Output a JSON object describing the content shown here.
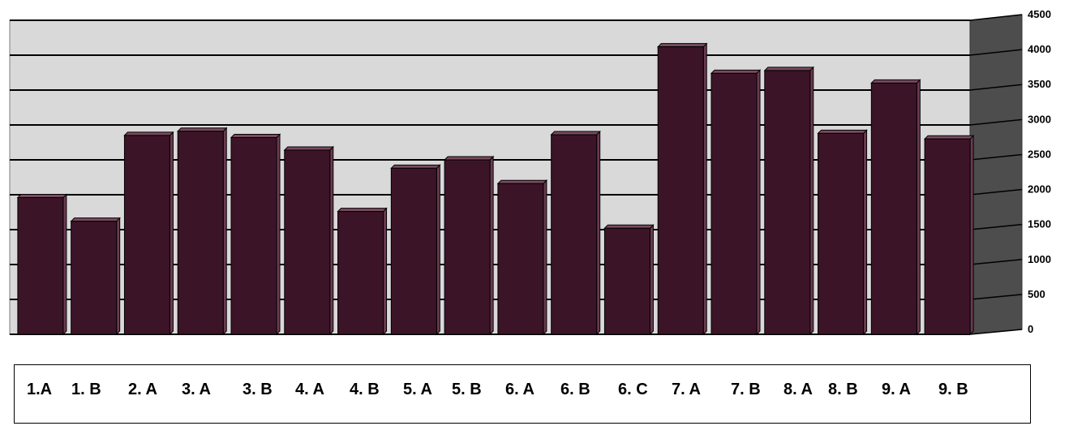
{
  "chart_data": {
    "type": "bar",
    "categories": [
      "1.A",
      "1. B",
      "2. A",
      "3. A",
      "3. B",
      "4. A",
      "4. B",
      "5. A",
      "5. B",
      "6. A",
      "6. B",
      "6. C",
      "7. A",
      "7. B",
      "8. A",
      "8. B",
      "9. A",
      "9. B"
    ],
    "values": [
      1960,
      1620,
      2850,
      2910,
      2820,
      2640,
      1760,
      2380,
      2500,
      2160,
      2860,
      1520,
      4120,
      3740,
      3780,
      2880,
      3600,
      2800
    ],
    "ylim": [
      0,
      4500
    ],
    "yticks": [
      "0",
      "500",
      "1000",
      "1500",
      "2000",
      "2500",
      "3000",
      "3500",
      "4000",
      "4500"
    ],
    "grid": true,
    "legend": "none",
    "title": "",
    "xlabel": "",
    "ylabel": ""
  },
  "colors": {
    "bar_front": "#3c1428",
    "bar_side": "#6b3a50",
    "bar_top": "#7a4a5e",
    "plot_back": "#d9d9d9",
    "side_wall": "#4d4d4d",
    "gridline": "#000000"
  }
}
